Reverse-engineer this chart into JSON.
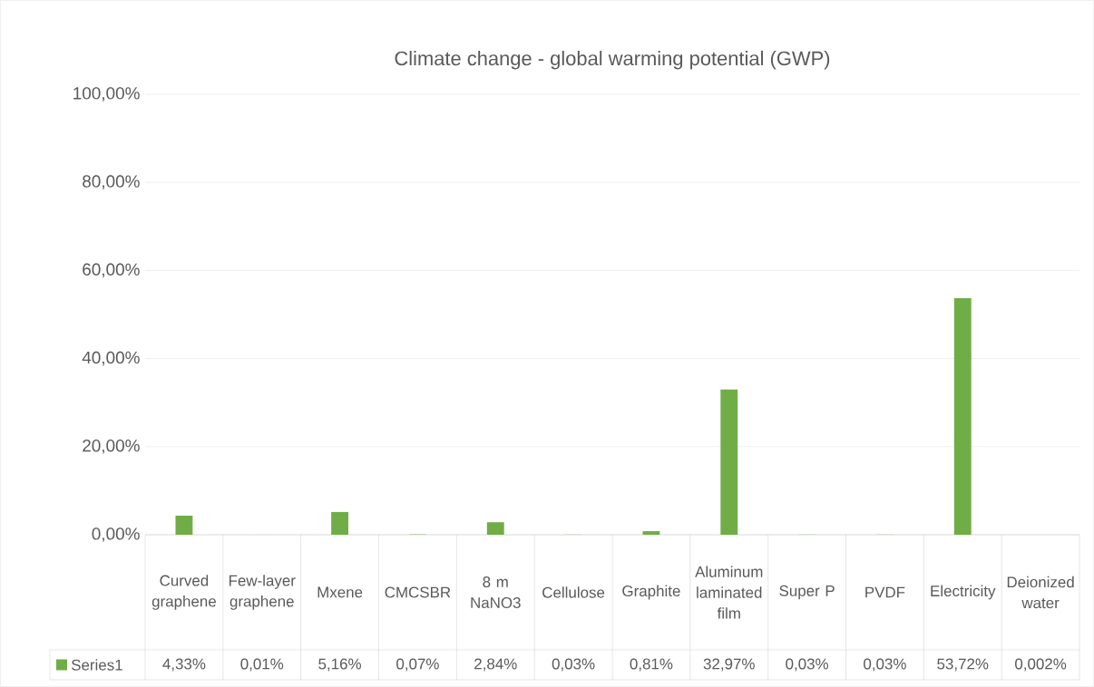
{
  "chart_data": {
    "type": "bar",
    "title": "Climate change - global warming potential (GWP)",
    "categories": [
      "Curved graphene",
      "Few-layer graphene",
      "Mxene",
      "CMCSBR",
      "8 m NaNO3",
      "Cellulose",
      "Graphite",
      "Aluminum laminated film",
      "Super P",
      "PVDF",
      "Electricity",
      "Deionized water"
    ],
    "series": [
      {
        "name": "Series1",
        "color": "#70ad47",
        "values": [
          4.33,
          0.01,
          5.16,
          0.07,
          2.84,
          0.03,
          0.81,
          32.97,
          0.03,
          0.03,
          53.72,
          0.002
        ],
        "value_labels": [
          "4,33%",
          "0,01%",
          "5,16%",
          "0,07%",
          "2,84%",
          "0,03%",
          "0,81%",
          "32,97%",
          "0,03%",
          "0,03%",
          "53,72%",
          "0,002%"
        ]
      }
    ],
    "ylim": [
      0,
      100
    ],
    "yticks": [
      {
        "value": 0,
        "label": "0,00%"
      },
      {
        "value": 20,
        "label": "20,00%"
      },
      {
        "value": 40,
        "label": "40,00%"
      },
      {
        "value": 60,
        "label": "60,00%"
      },
      {
        "value": 80,
        "label": "80,00%"
      },
      {
        "value": 100,
        "label": "100,00%"
      }
    ],
    "grid": "y",
    "legend": "bottom"
  }
}
